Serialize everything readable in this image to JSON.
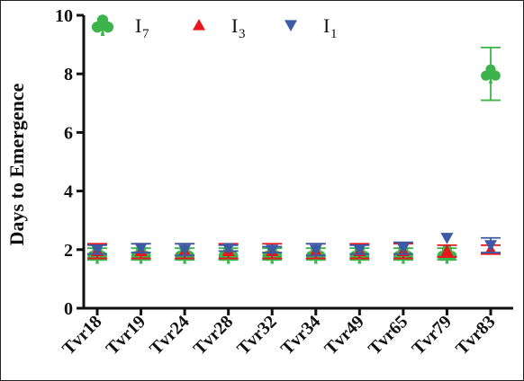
{
  "chart_data": {
    "type": "scatter",
    "title": "",
    "xlabel": "",
    "ylabel": "Days to Emergence",
    "ylim": [
      0,
      10
    ],
    "yticks": [
      0,
      2,
      4,
      6,
      8,
      10
    ],
    "categories": [
      "Tvr18",
      "Tvr19",
      "Tvr24",
      "Tvr28",
      "Tvr32",
      "Tvr34",
      "Tvr49",
      "Tvr65",
      "Tvr79",
      "Tvr83"
    ],
    "legend_position": "top-left",
    "grid": false,
    "series": [
      {
        "name": "I",
        "sub": "7",
        "marker": "club",
        "color": "#3cb44b",
        "values": [
          1.85,
          1.85,
          1.85,
          1.85,
          1.85,
          1.85,
          1.85,
          1.85,
          1.85,
          8.0
        ],
        "err": [
          0.2,
          0.2,
          0.2,
          0.2,
          0.2,
          0.2,
          0.2,
          0.2,
          0.2,
          0.9
        ]
      },
      {
        "name": "I",
        "sub": "3",
        "marker": "triangle-up",
        "color": "#e8141e",
        "values": [
          1.95,
          1.95,
          1.95,
          1.95,
          1.95,
          1.95,
          1.95,
          1.95,
          1.95,
          2.0
        ],
        "err": [
          0.25,
          0.25,
          0.25,
          0.25,
          0.25,
          0.25,
          0.25,
          0.25,
          0.2,
          0.15
        ]
      },
      {
        "name": "I",
        "sub": "1",
        "marker": "triangle-down",
        "color": "#3b5ba5",
        "values": [
          2.0,
          2.05,
          2.0,
          2.05,
          2.0,
          2.0,
          2.0,
          2.05,
          2.4,
          2.15
        ],
        "err": [
          0.15,
          0.15,
          0.2,
          0.1,
          0.1,
          0.2,
          0.15,
          0.2,
          0.0,
          0.25
        ]
      }
    ]
  }
}
